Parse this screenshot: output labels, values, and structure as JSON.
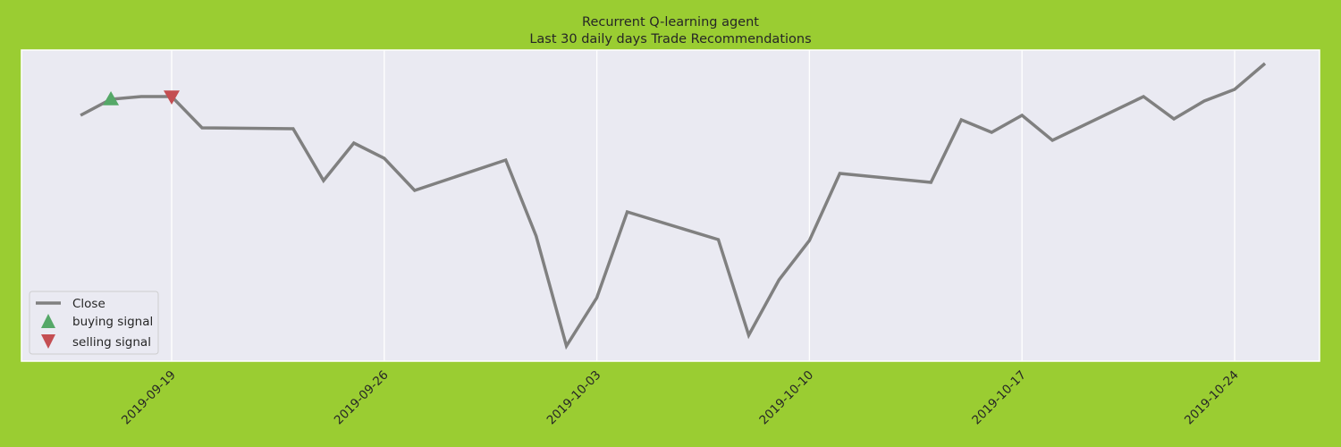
{
  "chart_data": {
    "type": "line",
    "title": [
      "Recurrent Q-learning agent",
      "Last 30 daily days Trade Recommendations"
    ],
    "xlabel": "",
    "ylabel": "",
    "x_ticks": [
      "2019-09-19",
      "2019-09-26",
      "2019-10-03",
      "2019-10-10",
      "2019-10-17",
      "2019-10-24"
    ],
    "grid": true,
    "legend_placement": "lower-left",
    "series": [
      {
        "name": "Close",
        "color": "#808080",
        "points": [
          {
            "x": "2019-09-16",
            "y": 129
          },
          {
            "x": "2019-09-17",
            "y": 111
          },
          {
            "x": "2019-09-18",
            "y": 108
          },
          {
            "x": "2019-09-19",
            "y": 108
          },
          {
            "x": "2019-09-20",
            "y": 143
          },
          {
            "x": "2019-09-23",
            "y": 144
          },
          {
            "x": "2019-09-24",
            "y": 202
          },
          {
            "x": "2019-09-25",
            "y": 160
          },
          {
            "x": "2019-09-26",
            "y": 177
          },
          {
            "x": "2019-09-27",
            "y": 213
          },
          {
            "x": "2019-09-30",
            "y": 179
          },
          {
            "x": "2019-10-01",
            "y": 264
          },
          {
            "x": "2019-10-02",
            "y": 387
          },
          {
            "x": "2019-10-03",
            "y": 333
          },
          {
            "x": "2019-10-04",
            "y": 237
          },
          {
            "x": "2019-10-07",
            "y": 268
          },
          {
            "x": "2019-10-08",
            "y": 375
          },
          {
            "x": "2019-10-09",
            "y": 313
          },
          {
            "x": "2019-10-10",
            "y": 269
          },
          {
            "x": "2019-10-11",
            "y": 194
          },
          {
            "x": "2019-10-14",
            "y": 204
          },
          {
            "x": "2019-10-15",
            "y": 134
          },
          {
            "x": "2019-10-16",
            "y": 148
          },
          {
            "x": "2019-10-17",
            "y": 129
          },
          {
            "x": "2019-10-18",
            "y": 157
          },
          {
            "x": "2019-10-21",
            "y": 108
          },
          {
            "x": "2019-10-22",
            "y": 133
          },
          {
            "x": "2019-10-23",
            "y": 113
          },
          {
            "x": "2019-10-24",
            "y": 100
          },
          {
            "x": "2019-10-25",
            "y": 71
          }
        ]
      },
      {
        "name": "buying signal",
        "marker": "triangle-up",
        "color": "#55a868",
        "points": [
          {
            "x": "2019-09-17",
            "y": 111
          }
        ]
      },
      {
        "name": "selling signal",
        "marker": "triangle-down",
        "color": "#c44e52",
        "points": [
          {
            "x": "2019-09-19",
            "y": 108
          }
        ]
      }
    ],
    "colors": {
      "figure_background": "#9acd32",
      "axes_background": "#eaeaf2",
      "grid": "#ffffff"
    }
  }
}
